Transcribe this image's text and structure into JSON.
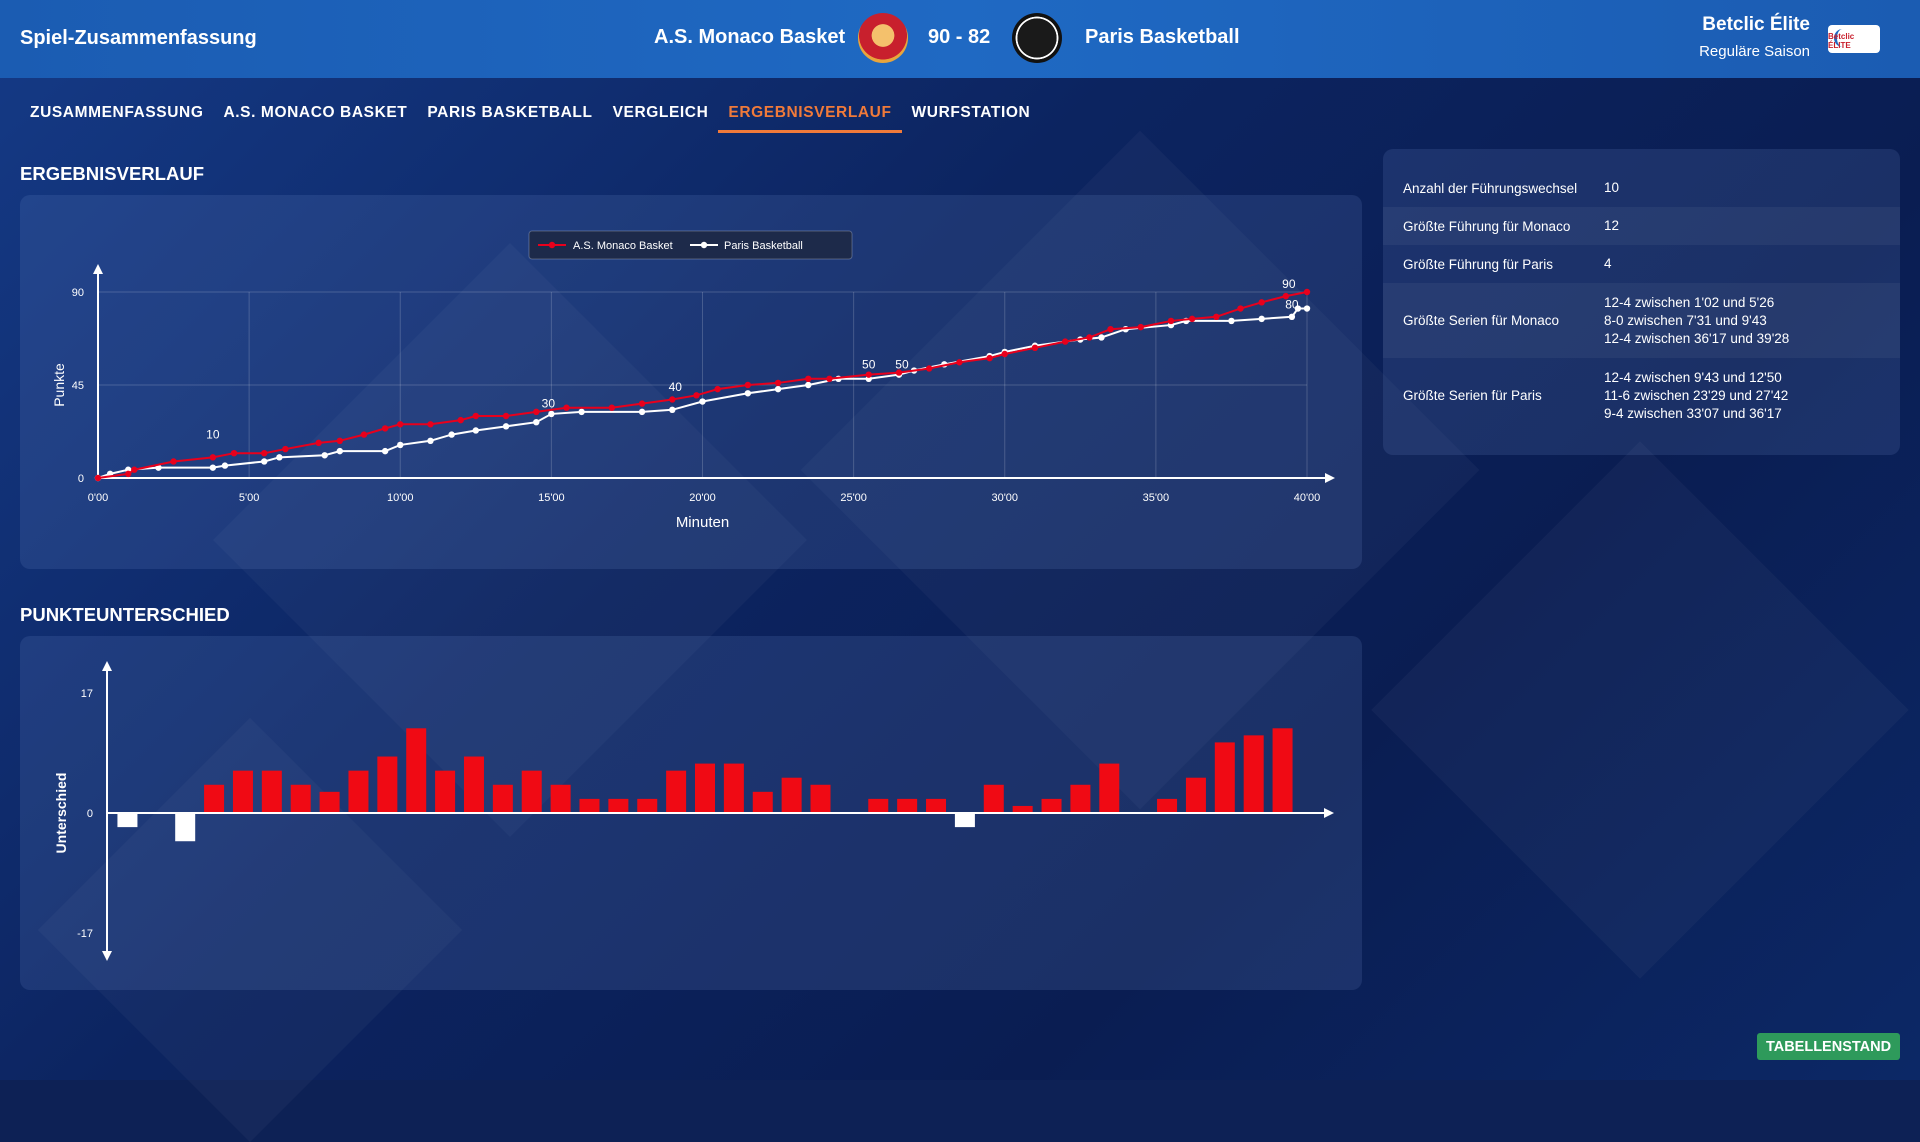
{
  "header": {
    "title": "Spiel-Zusammenfassung",
    "home_team": "A.S. Monaco Basket",
    "score": "90 - 82",
    "away_team": "Paris Basketball",
    "league": "Betclic Élite",
    "season": "Reguläre Saison",
    "league_logo_text": "Betclic ÉLITE"
  },
  "tabs": [
    {
      "label": "ZUSAMMENFASSUNG",
      "active": false
    },
    {
      "label": "A.S. MONACO BASKET",
      "active": false
    },
    {
      "label": "PARIS BASKETBALL",
      "active": false
    },
    {
      "label": "VERGLEICH",
      "active": false
    },
    {
      "label": "ERGEBNISVERLAUF",
      "active": true
    },
    {
      "label": "WURFSTATION",
      "active": false
    }
  ],
  "sections": {
    "score_history": "ERGEBNISVERLAUF",
    "point_diff": "PUNKTEUNTERSCHIED"
  },
  "stats": [
    {
      "label": "Anzahl der Führungswechsel",
      "values": [
        "10"
      ]
    },
    {
      "label": "Größte Führung für Monaco",
      "values": [
        "12"
      ]
    },
    {
      "label": "Größte Führung für Paris",
      "values": [
        "4"
      ]
    },
    {
      "label": "Größte Serien für Monaco",
      "values": [
        "12-4 zwischen 1'02 und 5'26",
        "8-0 zwischen 7'31 und 9'43",
        "12-4 zwischen 36'17 und 39'28"
      ]
    },
    {
      "label": "Größte Serien für Paris",
      "values": [
        "12-4 zwischen 9'43 und 12'50",
        "11-6 zwischen 23'29 und 27'42",
        "9-4 zwischen 33'07 und 36'17"
      ]
    }
  ],
  "standings_button": "TABELLENSTAND",
  "colors": {
    "monaco": "#e8001c",
    "paris": "#ffffff",
    "active_tab": "#f07a3a",
    "button": "#2e9a5b"
  },
  "chart_data": [
    {
      "type": "line",
      "xlabel": "Minuten",
      "ylabel": "Punkte",
      "xlim": [
        0,
        40
      ],
      "ylim": [
        0,
        90
      ],
      "x_ticks": [
        "0'00",
        "5'00",
        "10'00",
        "15'00",
        "20'00",
        "25'00",
        "30'00",
        "35'00",
        "40'00"
      ],
      "y_ticks": [
        0,
        45,
        90
      ],
      "grid": true,
      "legend": "top-center",
      "annotations": [
        {
          "x": 3.8,
          "y": 19,
          "text": "10"
        },
        {
          "x": 14.9,
          "y": 34,
          "text": "30"
        },
        {
          "x": 19.1,
          "y": 42,
          "text": "40"
        },
        {
          "x": 25.5,
          "y": 53,
          "text": "50"
        },
        {
          "x": 26.6,
          "y": 53,
          "text": "50"
        },
        {
          "x": 39.5,
          "y": 82,
          "text": "80"
        },
        {
          "x": 39.4,
          "y": 92,
          "text": "90"
        }
      ],
      "series": [
        {
          "name": "A.S. Monaco Basket",
          "color": "#e8001c",
          "points": [
            [
              0,
              0
            ],
            [
              1.0,
              2
            ],
            [
              1.2,
              4
            ],
            [
              2.5,
              8
            ],
            [
              3.8,
              10
            ],
            [
              4.5,
              12
            ],
            [
              5.5,
              12
            ],
            [
              6.2,
              14
            ],
            [
              7.3,
              17
            ],
            [
              8,
              18
            ],
            [
              8.8,
              21
            ],
            [
              9.5,
              24
            ],
            [
              10,
              26
            ],
            [
              11,
              26
            ],
            [
              12,
              28
            ],
            [
              12.5,
              30
            ],
            [
              13.5,
              30
            ],
            [
              14.5,
              32
            ],
            [
              15.5,
              34
            ],
            [
              17,
              34
            ],
            [
              18,
              36
            ],
            [
              19,
              38
            ],
            [
              19.8,
              40
            ],
            [
              20.5,
              43
            ],
            [
              21.5,
              45
            ],
            [
              22.5,
              46
            ],
            [
              23.5,
              48
            ],
            [
              24.2,
              48
            ],
            [
              25.5,
              50
            ],
            [
              26.5,
              51
            ],
            [
              27.5,
              53
            ],
            [
              28.5,
              56
            ],
            [
              29.5,
              58
            ],
            [
              30,
              60
            ],
            [
              31,
              63
            ],
            [
              32,
              66
            ],
            [
              32.8,
              68
            ],
            [
              33.5,
              72
            ],
            [
              34.5,
              73
            ],
            [
              35.5,
              76
            ],
            [
              36.2,
              77
            ],
            [
              37,
              78
            ],
            [
              37.8,
              82
            ],
            [
              38.5,
              85
            ],
            [
              39.3,
              88
            ],
            [
              40,
              90
            ]
          ]
        },
        {
          "name": "Paris Basketball",
          "color": "#ffffff",
          "points": [
            [
              0,
              0
            ],
            [
              0.4,
              2
            ],
            [
              1,
              4
            ],
            [
              2,
              5
            ],
            [
              3.8,
              5
            ],
            [
              4.2,
              6
            ],
            [
              5.5,
              8
            ],
            [
              6,
              10
            ],
            [
              7.5,
              11
            ],
            [
              8,
              13
            ],
            [
              9.5,
              13
            ],
            [
              10,
              16
            ],
            [
              11,
              18
            ],
            [
              11.7,
              21
            ],
            [
              12.5,
              23
            ],
            [
              13.5,
              25
            ],
            [
              14.5,
              27
            ],
            [
              15,
              31
            ],
            [
              16,
              32
            ],
            [
              18,
              32
            ],
            [
              19,
              33
            ],
            [
              20,
              37
            ],
            [
              21.5,
              41
            ],
            [
              22.5,
              43
            ],
            [
              23.5,
              45
            ],
            [
              24.5,
              48
            ],
            [
              25.5,
              48
            ],
            [
              26.5,
              50
            ],
            [
              27,
              52
            ],
            [
              28,
              55
            ],
            [
              29.5,
              59
            ],
            [
              30,
              61
            ],
            [
              31,
              64
            ],
            [
              32.5,
              67
            ],
            [
              33.2,
              68
            ],
            [
              34,
              72
            ],
            [
              35.5,
              74
            ],
            [
              36,
              76
            ],
            [
              37.5,
              76
            ],
            [
              38.5,
              77
            ],
            [
              39.5,
              78
            ],
            [
              39.7,
              82
            ],
            [
              40,
              82
            ]
          ]
        }
      ]
    },
    {
      "type": "bar",
      "xlabel": "",
      "ylabel": "Unterschied",
      "ylim": [
        -17,
        17
      ],
      "y_ticks": [
        17,
        0,
        -17
      ],
      "grid": false,
      "legend": "none",
      "values": [
        -2,
        0,
        -4,
        4,
        6,
        6,
        4,
        3,
        6,
        8,
        12,
        6,
        8,
        4,
        6,
        4,
        2,
        2,
        2,
        6,
        7,
        7,
        3,
        5,
        4,
        0,
        2,
        2,
        2,
        -2,
        4,
        1,
        2,
        4,
        7,
        0,
        2,
        5,
        10,
        11,
        12
      ],
      "colors": {
        "positive": "#f00a14",
        "negative": "#ffffff"
      }
    }
  ]
}
